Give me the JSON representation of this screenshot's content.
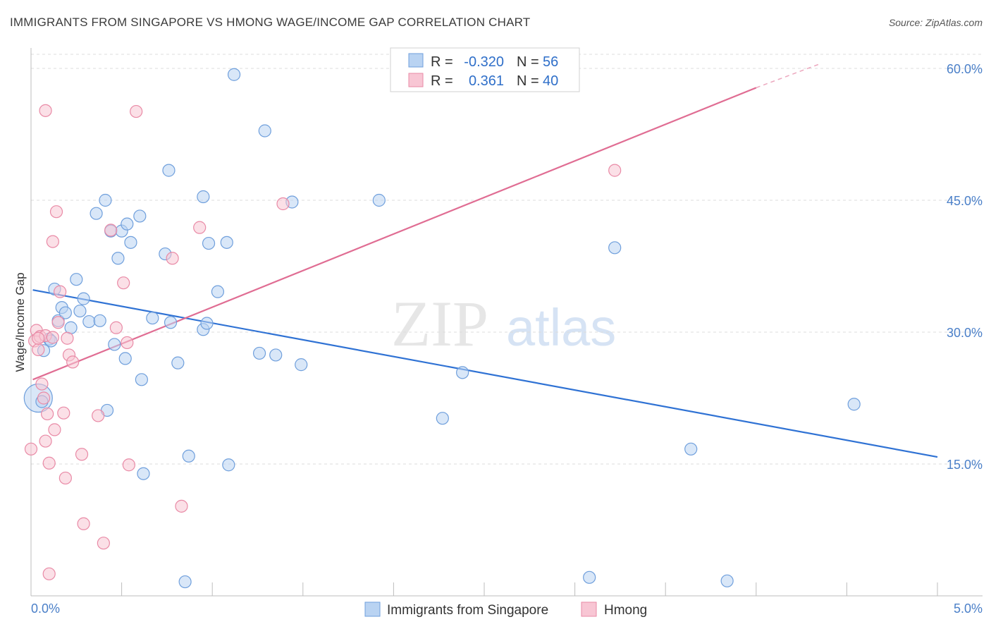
{
  "title": "IMMIGRANTS FROM SINGAPORE VS HMONG WAGE/INCOME GAP CORRELATION CHART",
  "source": "Source: ZipAtlas.com",
  "watermark": {
    "zip": "ZIP",
    "atlas": "atlas"
  },
  "colors": {
    "blue_fill": "#b9d3f2",
    "blue_stroke": "#6f9fdc",
    "blue_line": "#2f72d4",
    "pink_fill": "#f8c6d4",
    "pink_stroke": "#e98aa6",
    "pink_line": "#e06d93",
    "grid": "#dcdcdc",
    "axis_text": "#4a7fc8"
  },
  "legend": {
    "series1": {
      "r_label": "R =",
      "r_value": "-0.320",
      "n_label": "N =",
      "n_value": "56"
    },
    "series2": {
      "r_label": "R =",
      "r_value": "0.361",
      "n_label": "N =",
      "n_value": "40"
    }
  },
  "chart_data": {
    "type": "scatter",
    "title": "IMMIGRANTS FROM SINGAPORE VS HMONG WAGE/INCOME GAP CORRELATION CHART",
    "xlabel": "",
    "ylabel": "Wage/Income Gap",
    "xlim": [
      0,
      5
    ],
    "ylim": [
      0,
      60
    ],
    "x_tick_labels": [
      "0.0%",
      "5.0%"
    ],
    "y_ticks": [
      15,
      30,
      45,
      60
    ],
    "y_tick_labels": [
      "15.0%",
      "30.0%",
      "45.0%",
      "60.0%"
    ],
    "grid": true,
    "legend_position": "bottom",
    "series": [
      {
        "name": "Immigrants from Singapore",
        "color": "blue",
        "trend": {
          "x0": 0.01,
          "y0": 34.8,
          "x1": 5.0,
          "y1": 15.8
        },
        "points": [
          {
            "x": 0.04,
            "y": 22.5,
            "big": true
          },
          {
            "x": 0.07,
            "y": 27.9
          },
          {
            "x": 0.1,
            "y": 29.2
          },
          {
            "x": 0.13,
            "y": 34.9
          },
          {
            "x": 0.15,
            "y": 31.3
          },
          {
            "x": 0.17,
            "y": 32.8
          },
          {
            "x": 0.19,
            "y": 32.2
          },
          {
            "x": 0.22,
            "y": 30.5
          },
          {
            "x": 0.25,
            "y": 36.0
          },
          {
            "x": 0.29,
            "y": 33.8
          },
          {
            "x": 0.27,
            "y": 32.4
          },
          {
            "x": 0.32,
            "y": 31.2
          },
          {
            "x": 0.38,
            "y": 31.3
          },
          {
            "x": 0.44,
            "y": 41.5
          },
          {
            "x": 0.36,
            "y": 43.5
          },
          {
            "x": 0.41,
            "y": 45.0
          },
          {
            "x": 0.46,
            "y": 28.6
          },
          {
            "x": 0.48,
            "y": 38.4
          },
          {
            "x": 0.5,
            "y": 41.5
          },
          {
            "x": 0.53,
            "y": 42.3
          },
          {
            "x": 0.55,
            "y": 40.2
          },
          {
            "x": 0.52,
            "y": 27.0
          },
          {
            "x": 0.6,
            "y": 43.2
          },
          {
            "x": 0.61,
            "y": 24.6
          },
          {
            "x": 0.67,
            "y": 31.6
          },
          {
            "x": 0.74,
            "y": 38.9
          },
          {
            "x": 0.76,
            "y": 48.4
          },
          {
            "x": 0.77,
            "y": 31.1
          },
          {
            "x": 0.81,
            "y": 26.5
          },
          {
            "x": 0.95,
            "y": 30.3
          },
          {
            "x": 0.97,
            "y": 31.0
          },
          {
            "x": 0.95,
            "y": 45.4
          },
          {
            "x": 0.98,
            "y": 40.1
          },
          {
            "x": 1.03,
            "y": 34.6
          },
          {
            "x": 1.08,
            "y": 40.2
          },
          {
            "x": 1.12,
            "y": 59.3
          },
          {
            "x": 1.26,
            "y": 27.6
          },
          {
            "x": 1.29,
            "y": 52.9
          },
          {
            "x": 1.35,
            "y": 27.4
          },
          {
            "x": 1.44,
            "y": 44.8
          },
          {
            "x": 1.49,
            "y": 26.3
          },
          {
            "x": 1.92,
            "y": 45.0
          },
          {
            "x": 2.27,
            "y": 20.2
          },
          {
            "x": 2.38,
            "y": 25.4
          },
          {
            "x": 0.42,
            "y": 21.1
          },
          {
            "x": 0.62,
            "y": 13.9
          },
          {
            "x": 0.87,
            "y": 15.9
          },
          {
            "x": 1.09,
            "y": 14.9
          },
          {
            "x": 0.85,
            "y": 1.6
          },
          {
            "x": 3.22,
            "y": 39.6
          },
          {
            "x": 3.08,
            "y": 2.1
          },
          {
            "x": 3.64,
            "y": 16.7
          },
          {
            "x": 3.84,
            "y": 1.7
          },
          {
            "x": 4.54,
            "y": 21.8
          },
          {
            "x": 0.06,
            "y": 22.1
          },
          {
            "x": 0.11,
            "y": 29.0
          }
        ]
      },
      {
        "name": "Hmong",
        "color": "pink",
        "trend": {
          "x0": 0.01,
          "y0": 24.6,
          "x1": 4.0,
          "y1": 57.8,
          "dash_x1": 4.35,
          "dash_y1": 60.5
        },
        "points": [
          {
            "x": 0.0,
            "y": 16.7
          },
          {
            "x": 0.02,
            "y": 29.0
          },
          {
            "x": 0.03,
            "y": 30.2
          },
          {
            "x": 0.04,
            "y": 28.0
          },
          {
            "x": 0.05,
            "y": 29.5
          },
          {
            "x": 0.06,
            "y": 24.1
          },
          {
            "x": 0.07,
            "y": 22.5
          },
          {
            "x": 0.08,
            "y": 29.6
          },
          {
            "x": 0.09,
            "y": 20.7
          },
          {
            "x": 0.08,
            "y": 17.6
          },
          {
            "x": 0.1,
            "y": 15.1
          },
          {
            "x": 0.12,
            "y": 29.4
          },
          {
            "x": 0.13,
            "y": 18.9
          },
          {
            "x": 0.14,
            "y": 43.7
          },
          {
            "x": 0.12,
            "y": 40.3
          },
          {
            "x": 0.15,
            "y": 31.1
          },
          {
            "x": 0.16,
            "y": 34.6
          },
          {
            "x": 0.18,
            "y": 20.8
          },
          {
            "x": 0.19,
            "y": 13.4
          },
          {
            "x": 0.2,
            "y": 29.3
          },
          {
            "x": 0.21,
            "y": 27.4
          },
          {
            "x": 0.23,
            "y": 26.6
          },
          {
            "x": 0.28,
            "y": 16.1
          },
          {
            "x": 0.29,
            "y": 8.2
          },
          {
            "x": 0.08,
            "y": 55.2
          },
          {
            "x": 0.37,
            "y": 20.5
          },
          {
            "x": 0.4,
            "y": 6.0
          },
          {
            "x": 0.44,
            "y": 41.6
          },
          {
            "x": 0.47,
            "y": 30.5
          },
          {
            "x": 0.51,
            "y": 35.6
          },
          {
            "x": 0.53,
            "y": 28.8
          },
          {
            "x": 0.54,
            "y": 14.9
          },
          {
            "x": 0.58,
            "y": 55.1
          },
          {
            "x": 0.78,
            "y": 38.4
          },
          {
            "x": 0.83,
            "y": 10.2
          },
          {
            "x": 0.93,
            "y": 41.9
          },
          {
            "x": 1.39,
            "y": 44.6
          },
          {
            "x": 3.22,
            "y": 48.4
          },
          {
            "x": 0.1,
            "y": 2.5
          },
          {
            "x": 0.04,
            "y": 29.3
          }
        ]
      }
    ]
  },
  "bottom_legend": {
    "item1": "Immigrants from Singapore",
    "item2": "Hmong"
  }
}
